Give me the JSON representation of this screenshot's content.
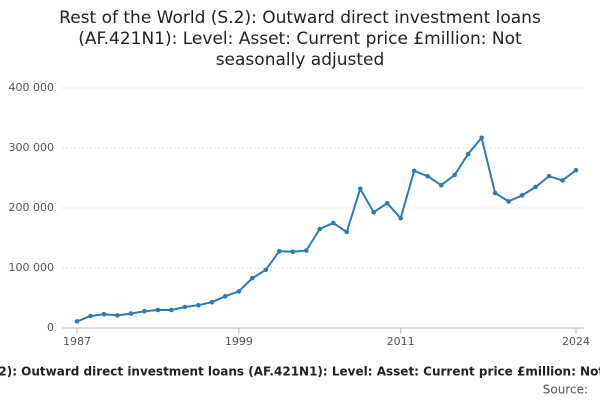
{
  "chart_data": {
    "type": "line",
    "title": "Rest of the World (S.2): Outward direct investment loans (AF.421N1): Level: Asset: Current price £million: Not seasonally adjusted",
    "source": "Source:",
    "x": [
      1987,
      1988,
      1989,
      1990,
      1991,
      1992,
      1993,
      1994,
      1995,
      1996,
      1997,
      1998,
      1999,
      2000,
      2001,
      2002,
      2003,
      2004,
      2005,
      2006,
      2007,
      2008,
      2009,
      2010,
      2011,
      2012,
      2013,
      2014,
      2015,
      2016,
      2017,
      2018,
      2019,
      2020,
      2021,
      2022,
      2023,
      2024
    ],
    "series": [
      {
        "name": "Outward direct investment loans",
        "color": "#2a7bb9",
        "values": [
          11000,
          20000,
          23000,
          21000,
          24000,
          28000,
          30000,
          30000,
          35000,
          38000,
          43000,
          53000,
          61000,
          83000,
          97000,
          128000,
          127000,
          129000,
          165000,
          175000,
          160000,
          232000,
          193000,
          208000,
          183000,
          262000,
          253000,
          238000,
          255000,
          290000,
          317000,
          225000,
          211000,
          221000,
          235000,
          253000,
          246000,
          263000
        ]
      }
    ],
    "xlim": [
      1987,
      2024
    ],
    "xticks": [
      1987,
      1999,
      2011,
      2024
    ],
    "ylim": [
      0,
      400000
    ],
    "yticks": [
      0,
      {
        "value": 100000,
        "label": "100 000"
      },
      {
        "value": 200000,
        "label": "200 000"
      },
      {
        "value": 300000,
        "label": "300 000"
      },
      {
        "value": 400000,
        "label": "400 000"
      }
    ],
    "grid": true
  }
}
